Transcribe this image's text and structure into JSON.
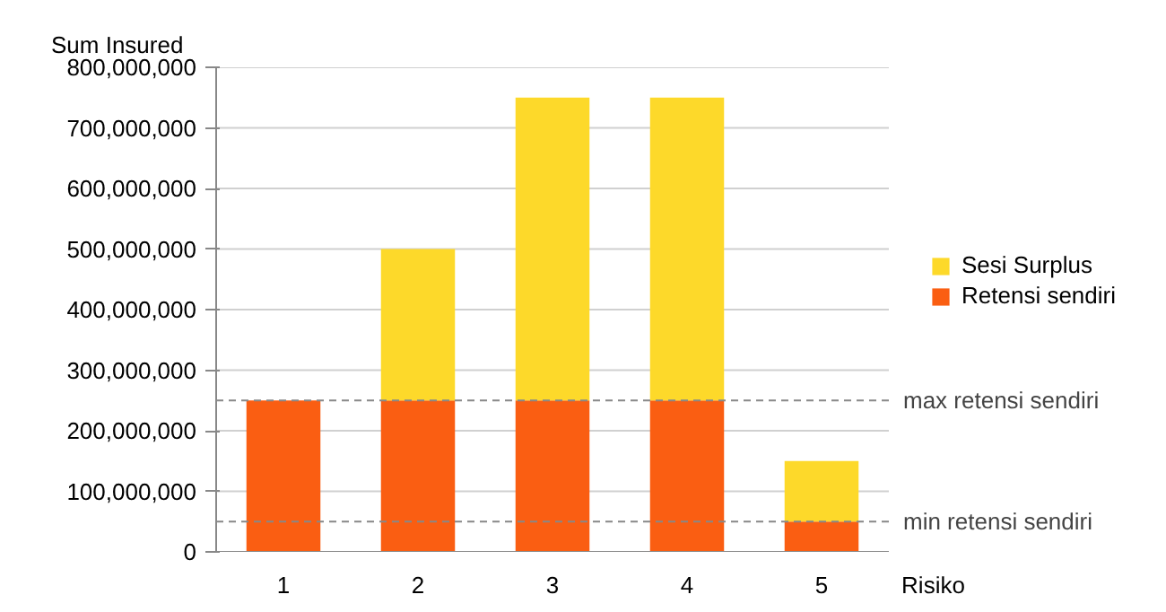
{
  "chart_data": {
    "type": "bar",
    "stacked": true,
    "ylabel": "Sum Insured",
    "xlabel": "Risiko",
    "categories": [
      "1",
      "2",
      "3",
      "4",
      "5"
    ],
    "series": [
      {
        "name": "Retensi sendiri",
        "color": "#fa5e12",
        "values": [
          250000000,
          250000000,
          250000000,
          250000000,
          50000000
        ]
      },
      {
        "name": "Sesi Surplus",
        "color": "#fdd92a",
        "values": [
          0,
          250000000,
          500000000,
          500000000,
          100000000
        ]
      }
    ],
    "ylim": [
      0,
      800000000
    ],
    "yticks": [
      0,
      {
        "value": 100000000,
        "label": "100,000,000"
      },
      {
        "value": 200000000,
        "label": "200,000,000"
      },
      {
        "value": 300000000,
        "label": "300,000,000"
      },
      {
        "value": 400000000,
        "label": "400,000,000"
      },
      {
        "value": 500000000,
        "label": "500,000,000"
      },
      {
        "value": 600000000,
        "label": "600,000,000"
      },
      {
        "value": 700000000,
        "label": "700,000,000"
      },
      {
        "value": 800000000,
        "label": "800,000,000"
      }
    ],
    "ref_lines": [
      {
        "axis": "y",
        "value": 250000000,
        "label": "max retensi sendiri",
        "line_style": "dashed",
        "color": "#888888"
      },
      {
        "axis": "y",
        "value": 50000000,
        "label": "min retensi sendiri",
        "line_style": "dashed",
        "color": "#888888"
      }
    ],
    "grid": "y",
    "legend": "right"
  }
}
